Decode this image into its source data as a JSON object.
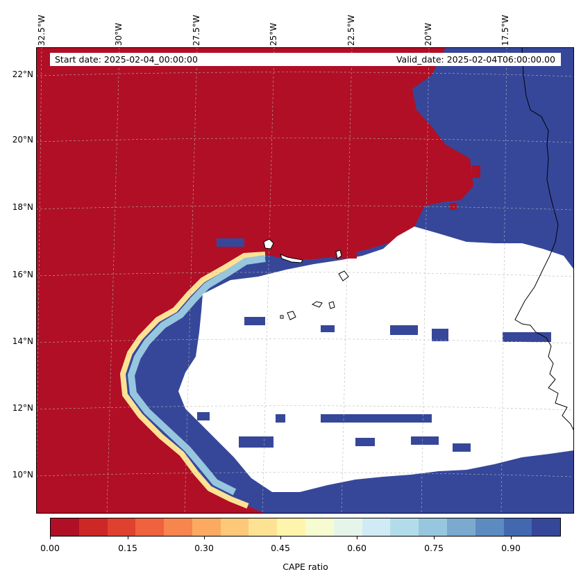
{
  "header": {
    "start_date": "Start date: 2025-02-04_00:00:00",
    "valid_date": "Valid_date: 2025-02-04T06:00:00.00"
  },
  "map": {
    "lon_labels": [
      "32.5°W",
      "30°W",
      "27.5°W",
      "25°W",
      "22.5°W",
      "20°W",
      "17.5°W"
    ],
    "lat_labels": [
      "22°N",
      "20°N",
      "18°N",
      "16°N",
      "14°N",
      "12°N",
      "10°N"
    ],
    "field_colors": {
      "low": "#b10f26",
      "high": "#36479a",
      "masked": "#ffffff",
      "coast": "#000000",
      "grid": "#b5b5b5"
    }
  },
  "colorbar": {
    "title": "CAPE ratio",
    "tick_labels": [
      "0.00",
      "0.15",
      "0.30",
      "0.45",
      "0.60",
      "0.75",
      "0.90"
    ],
    "colors": [
      "#b10f26",
      "#cd2726",
      "#e0412f",
      "#f0613d",
      "#f8844e",
      "#fcaa5f",
      "#fdc877",
      "#fee294",
      "#fff4ac",
      "#f6fbd0",
      "#e6f5ea",
      "#d1ebf4",
      "#b3dceb",
      "#97c6df",
      "#7ba9cf",
      "#5b8bc0",
      "#4269b0",
      "#36479a"
    ]
  }
}
